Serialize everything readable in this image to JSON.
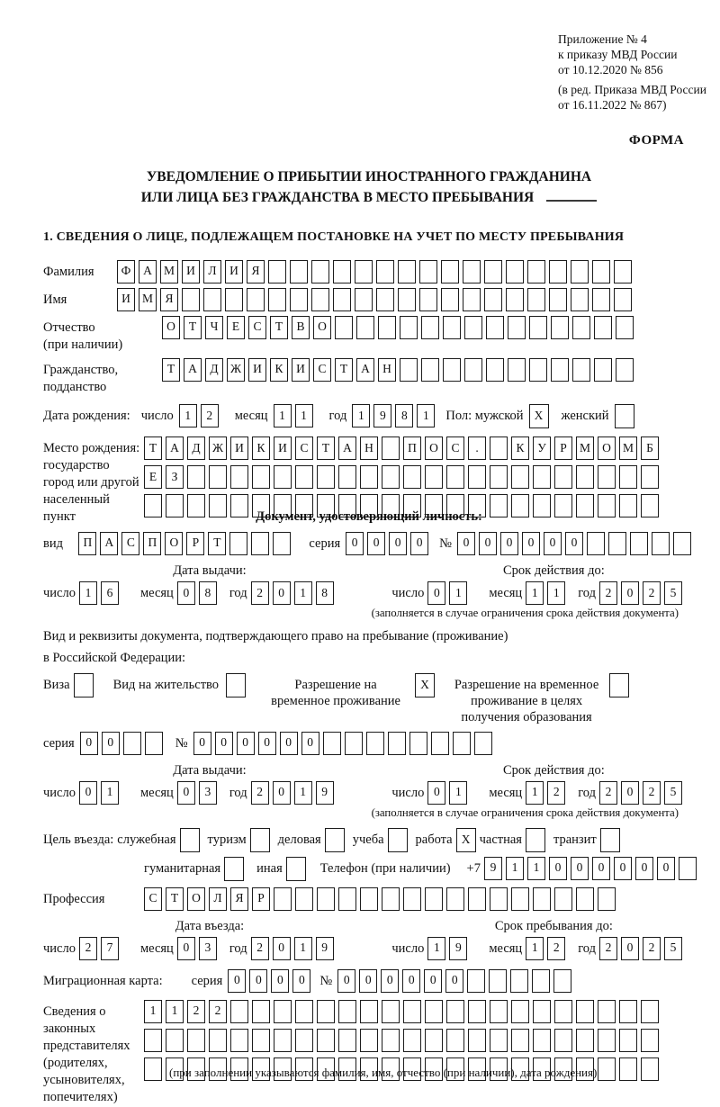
{
  "header": {
    "ref_lines": [
      "Приложение № 4",
      "к приказу МВД России",
      "от 10.12.2020 № 856"
    ],
    "ref_lines_small": [
      "(в ред. Приказа МВД России",
      "от 16.11.2022 № 867)"
    ],
    "form_label": "ФОРМА"
  },
  "title": {
    "line1": "УВЕДОМЛЕНИЕ О ПРИБЫТИИ ИНОСТРАННОГО ГРАЖДАНИНА",
    "line2": "ИЛИ ЛИЦА БЕЗ ГРАЖДАНСТВА В МЕСТО ПРЕБЫВАНИЯ"
  },
  "section1_heading": "1. СВЕДЕНИЯ О ЛИЦЕ, ПОДЛЕЖАЩЕМ ПОСТАНОВКЕ НА УЧЕТ ПО МЕСТУ ПРЕБЫВАНИЯ",
  "labels": {
    "day": "число",
    "month": "месяц",
    "year": "год",
    "seriya": "серия",
    "number": "№",
    "issue_date": "Дата выдачи:",
    "valid_until": "Срок действия до:",
    "note_validity": "(заполняется в случае ограничения срока действия документа)"
  },
  "surname": {
    "label": "Фамилия",
    "cells": {
      "value": "ФАМИЛИЯ",
      "cells": 24
    }
  },
  "name": {
    "label": "Имя",
    "cells": {
      "value": "ИМЯ",
      "cells": 24
    }
  },
  "patronymic": {
    "label1": "Отчество",
    "label2": "(при наличии)",
    "cells": {
      "value": "ОТЧЕСТВО",
      "cells": 22
    }
  },
  "citizenship": {
    "label1": "Гражданство,",
    "label2": "подданство",
    "cells": {
      "value": "ТАДЖИКИСТАН",
      "cells": 22
    }
  },
  "birth_date": {
    "label": "Дата рождения:",
    "day": {
      "value": "12",
      "cells": 2
    },
    "month": {
      "value": "11",
      "cells": 2
    },
    "year": {
      "value": "1981",
      "cells": 4
    },
    "sex_label": "Пол: мужской",
    "male": "X",
    "female_label": "женский",
    "female": ""
  },
  "birth_place": {
    "label_lines": [
      "Место рождения:",
      "государство",
      "город или другой",
      "населенный пункт"
    ],
    "row1": {
      "value": "ТАДЖИКИСТАН ПОС. КУРМОМБ",
      "cells": 24
    },
    "row2": {
      "value": "ЕЗ",
      "cells": 24
    },
    "row3": {
      "value": "",
      "cells": 24
    }
  },
  "identity_doc": {
    "heading": "Документ, удостоверяющий личность:",
    "vid_label": "вид",
    "vid": {
      "value": "ПАСПОРТ",
      "cells": 10
    },
    "seriya": {
      "value": "0000",
      "cells": 4
    },
    "number": {
      "value": "000000",
      "cells": 11
    },
    "issue": {
      "day": {
        "value": "16",
        "cells": 2
      },
      "month": {
        "value": "08",
        "cells": 2
      },
      "year": {
        "value": "2018",
        "cells": 4
      }
    },
    "valid": {
      "day": {
        "value": "01",
        "cells": 2
      },
      "month": {
        "value": "11",
        "cells": 2
      },
      "year": {
        "value": "2025",
        "cells": 4
      }
    }
  },
  "residence_doc": {
    "intro1": "Вид и реквизиты документа, подтверждающего право на пребывание (проживание)",
    "intro2": "в Российской Федерации:",
    "options": [
      {
        "label": "Виза",
        "checked": ""
      },
      {
        "label": "Вид на жительство",
        "checked": ""
      },
      {
        "label": "Разрешение на временное проживание",
        "checked": "X"
      },
      {
        "label": "Разрешение на временное проживание в целях получения образования",
        "checked": ""
      }
    ],
    "seriya": {
      "value": "00",
      "cells": 4
    },
    "number": {
      "value": "000000",
      "cells": 14
    },
    "issue": {
      "day": {
        "value": "01",
        "cells": 2
      },
      "month": {
        "value": "03",
        "cells": 2
      },
      "year": {
        "value": "2019",
        "cells": 4
      }
    },
    "valid": {
      "day": {
        "value": "01",
        "cells": 2
      },
      "month": {
        "value": "12",
        "cells": 2
      },
      "year": {
        "value": "2025",
        "cells": 4
      }
    }
  },
  "visit_purpose": {
    "label": "Цель въезда:",
    "options_row1": [
      {
        "label": "служебная",
        "checked": ""
      },
      {
        "label": "туризм",
        "checked": ""
      },
      {
        "label": "деловая",
        "checked": ""
      },
      {
        "label": "учеба",
        "checked": ""
      },
      {
        "label": "работа",
        "checked": "X"
      },
      {
        "label": "частная",
        "checked": ""
      },
      {
        "label": "транзит",
        "checked": ""
      }
    ],
    "options_row2": [
      {
        "label": "гуманитарная",
        "checked": ""
      },
      {
        "label": "иная",
        "checked": ""
      }
    ],
    "phone_label": "Телефон (при наличии)",
    "phone_prefix": "+7",
    "phone": {
      "value": "911000000",
      "cells": 10
    }
  },
  "profession": {
    "label": "Профессия",
    "cells": {
      "value": "СТОЛЯР",
      "cells": 22
    }
  },
  "entry": {
    "entry_date_label": "Дата въезда:",
    "stay_until_label": "Срок пребывания до:",
    "entry_date": {
      "day": {
        "value": "27",
        "cells": 2
      },
      "month": {
        "value": "03",
        "cells": 2
      },
      "year": {
        "value": "2019",
        "cells": 4
      }
    },
    "stay_until": {
      "day": {
        "value": "19",
        "cells": 2
      },
      "month": {
        "value": "12",
        "cells": 2
      },
      "year": {
        "value": "2025",
        "cells": 4
      }
    }
  },
  "migration_card": {
    "label": "Миграционная карта:",
    "seriya": {
      "value": "0000",
      "cells": 4
    },
    "number": {
      "value": "000000",
      "cells": 11
    }
  },
  "representatives": {
    "label_lines": [
      "Сведения о",
      "законных",
      "представителях",
      "(родителях,",
      "усыновителях,",
      "попечителях)"
    ],
    "row1": {
      "value": "1122",
      "cells": 24
    },
    "row2": {
      "value": "",
      "cells": 24
    },
    "row3": {
      "value": "",
      "cells": 24
    },
    "note": "(при заполнении указываются фамилия, имя, отчество (при наличии), дата рождения)"
  }
}
